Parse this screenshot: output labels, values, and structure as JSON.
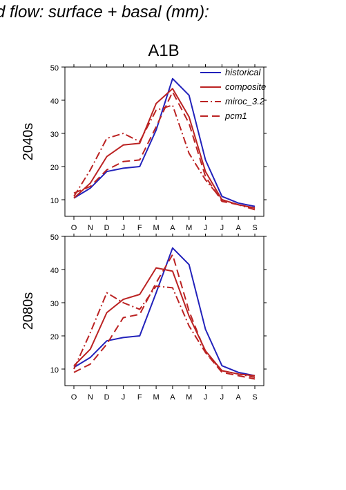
{
  "figure_title": "d flow: surface + basal (mm):",
  "scenario": "A1B",
  "colors": {
    "historical": "#2222bb",
    "models": "#bb2222"
  },
  "chart_data": [
    {
      "type": "line",
      "panel": "2040s",
      "ylabel": "2040s",
      "categories": [
        "O",
        "N",
        "D",
        "J",
        "F",
        "M",
        "A",
        "M",
        "J",
        "J",
        "A",
        "S"
      ],
      "ylim": [
        5,
        50
      ],
      "yticks": [
        10,
        20,
        30,
        40,
        50
      ],
      "legend": "top-right",
      "series": [
        {
          "name": "historical",
          "style": "solid",
          "values": [
            10.5,
            13.5,
            18.5,
            19.5,
            20,
            31,
            46.5,
            41.5,
            22,
            11,
            9,
            8
          ]
        },
        {
          "name": "composite",
          "style": "solid",
          "values": [
            10.5,
            15,
            23,
            26.5,
            27,
            39,
            43.5,
            35,
            18.5,
            10,
            8.5,
            7.5
          ]
        },
        {
          "name": "miroc_3.2",
          "style": "dashdot",
          "values": [
            11,
            19,
            28.5,
            30,
            27.5,
            37,
            38.5,
            24,
            16,
            10,
            8.5,
            7
          ]
        },
        {
          "name": "pcm1",
          "style": "dashed",
          "values": [
            12,
            14,
            19,
            21.5,
            22,
            32,
            42.5,
            33,
            17,
            9.5,
            8.5,
            7.5
          ]
        }
      ]
    },
    {
      "type": "line",
      "panel": "2080s",
      "ylabel": "2080s",
      "categories": [
        "O",
        "N",
        "D",
        "J",
        "F",
        "M",
        "A",
        "M",
        "J",
        "J",
        "A",
        "S"
      ],
      "ylim": [
        5,
        50
      ],
      "yticks": [
        10,
        20,
        30,
        40,
        50
      ],
      "series": [
        {
          "name": "historical",
          "style": "solid",
          "values": [
            10.5,
            13.5,
            18.5,
            19.5,
            20,
            33,
            46.5,
            41.5,
            22,
            11,
            9,
            8
          ]
        },
        {
          "name": "composite",
          "style": "solid",
          "values": [
            11,
            16,
            27,
            31,
            32.5,
            40.5,
            39.5,
            26,
            15.5,
            9.5,
            8.5,
            8
          ]
        },
        {
          "name": "miroc_3.2",
          "style": "dashdot",
          "values": [
            10,
            21,
            33,
            30,
            28,
            35,
            34.5,
            23,
            15,
            9.5,
            8.5,
            7.5
          ]
        },
        {
          "name": "pcm1",
          "style": "dashed",
          "values": [
            9,
            11.5,
            17.5,
            25.5,
            26.5,
            36,
            44.5,
            27.5,
            15,
            9,
            8,
            7
          ]
        }
      ]
    }
  ]
}
